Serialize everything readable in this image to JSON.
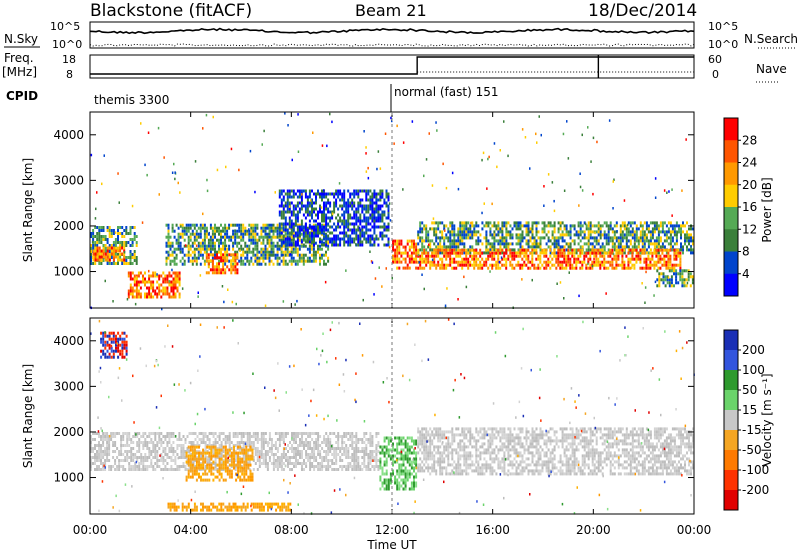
{
  "header": {
    "station": "Blackstone (fitACF)",
    "beam": "Beam 21",
    "date": "18/Dec/2014"
  },
  "side_labels": {
    "nsky": "N.Sky",
    "freq": "Freq.",
    "freq_unit": "[MHz]",
    "cpid": "CPID",
    "nsearch": "N.Search",
    "nave": "Nave"
  },
  "scales": {
    "nsky_top": "10^5",
    "nsky_bottom": "10^0",
    "nsearch_top": "10^5",
    "nsearch_bottom": "10^0",
    "freq_top": "18",
    "freq_bottom": "8",
    "nave_top": "60",
    "nave_bottom": "0"
  },
  "cpid_labels": [
    "themis 3300",
    "normal (fast) 151"
  ],
  "x_axis": {
    "title": "Time UT",
    "ticks": [
      "00:00",
      "04:00",
      "08:00",
      "12:00",
      "16:00",
      "20:00",
      "00:00"
    ]
  },
  "power_panel": {
    "ylabel": "Slant Range [km]",
    "yticks": [
      "4000",
      "3000",
      "2000",
      "1000"
    ],
    "colorbar_label": "Power [dB]",
    "colorbar_ticks": [
      "28",
      "24",
      "20",
      "16",
      "12",
      "8",
      "4"
    ],
    "colorbar_colors": [
      "#ff0000",
      "#ff5500",
      "#ff9900",
      "#ffcc00",
      "#55aa55",
      "#3a7f3a",
      "#0044cc",
      "#0000ff"
    ]
  },
  "velocity_panel": {
    "ylabel": "Slant Range [km]",
    "yticks": [
      "4000",
      "3000",
      "2000",
      "1000"
    ],
    "colorbar_label": "Velocity [m s⁻¹]",
    "colorbar_ticks": [
      "200",
      "100",
      "50",
      "15",
      "-15",
      "-50",
      "-100",
      "-200"
    ],
    "colorbar_colors": [
      "#1a2fb5",
      "#3355dd",
      "#2e9a2e",
      "#6ad36a",
      "#c8c8c8",
      "#f5a623",
      "#ff7a00",
      "#ff3300",
      "#e00000"
    ]
  },
  "chart_data": {
    "type": "heatmap",
    "x_range_hours": [
      0,
      24
    ],
    "y_range_km": [
      200,
      4500
    ],
    "power_features": [
      {
        "t0": 0.0,
        "t1": 1.9,
        "r0": 1100,
        "r1": 2000,
        "level": "mid"
      },
      {
        "t0": 0.1,
        "t1": 1.4,
        "r0": 1200,
        "r1": 1550,
        "level": "high"
      },
      {
        "t0": 1.5,
        "t1": 3.6,
        "r0": 350,
        "r1": 1000,
        "level": "high"
      },
      {
        "t0": 3.0,
        "t1": 9.5,
        "r0": 1100,
        "r1": 2050,
        "level": "mid"
      },
      {
        "t0": 4.6,
        "t1": 5.9,
        "r0": 900,
        "r1": 1400,
        "level": "high"
      },
      {
        "t0": 7.5,
        "t1": 11.9,
        "r0": 1500,
        "r1": 2800,
        "level": "low"
      },
      {
        "t0": 12.0,
        "t1": 13.0,
        "r0": 1000,
        "r1": 1700,
        "level": "high"
      },
      {
        "t0": 13.0,
        "t1": 24.0,
        "r0": 1350,
        "r1": 2100,
        "level": "mid"
      },
      {
        "t0": 13.0,
        "t1": 23.5,
        "r0": 1000,
        "r1": 1500,
        "level": "high"
      },
      {
        "t0": 22.5,
        "t1": 24.0,
        "r0": 650,
        "r1": 1050,
        "level": "mid"
      }
    ],
    "velocity_features": [
      {
        "t0": 0.0,
        "t1": 11.5,
        "r0": 1100,
        "r1": 2000,
        "class": "ground"
      },
      {
        "t0": 3.8,
        "t1": 6.5,
        "r0": 900,
        "r1": 1700,
        "class": "away_low"
      },
      {
        "t0": 11.5,
        "t1": 13.0,
        "r0": 700,
        "r1": 1900,
        "class": "toward_low"
      },
      {
        "t0": 13.0,
        "t1": 24.0,
        "r0": 1000,
        "r1": 2100,
        "class": "ground"
      },
      {
        "t0": 3.0,
        "t1": 8.0,
        "r0": 250,
        "r1": 450,
        "class": "away_low"
      },
      {
        "t0": 0.4,
        "t1": 1.5,
        "r0": 3600,
        "r1": 4200,
        "class": "toward_high"
      }
    ]
  }
}
